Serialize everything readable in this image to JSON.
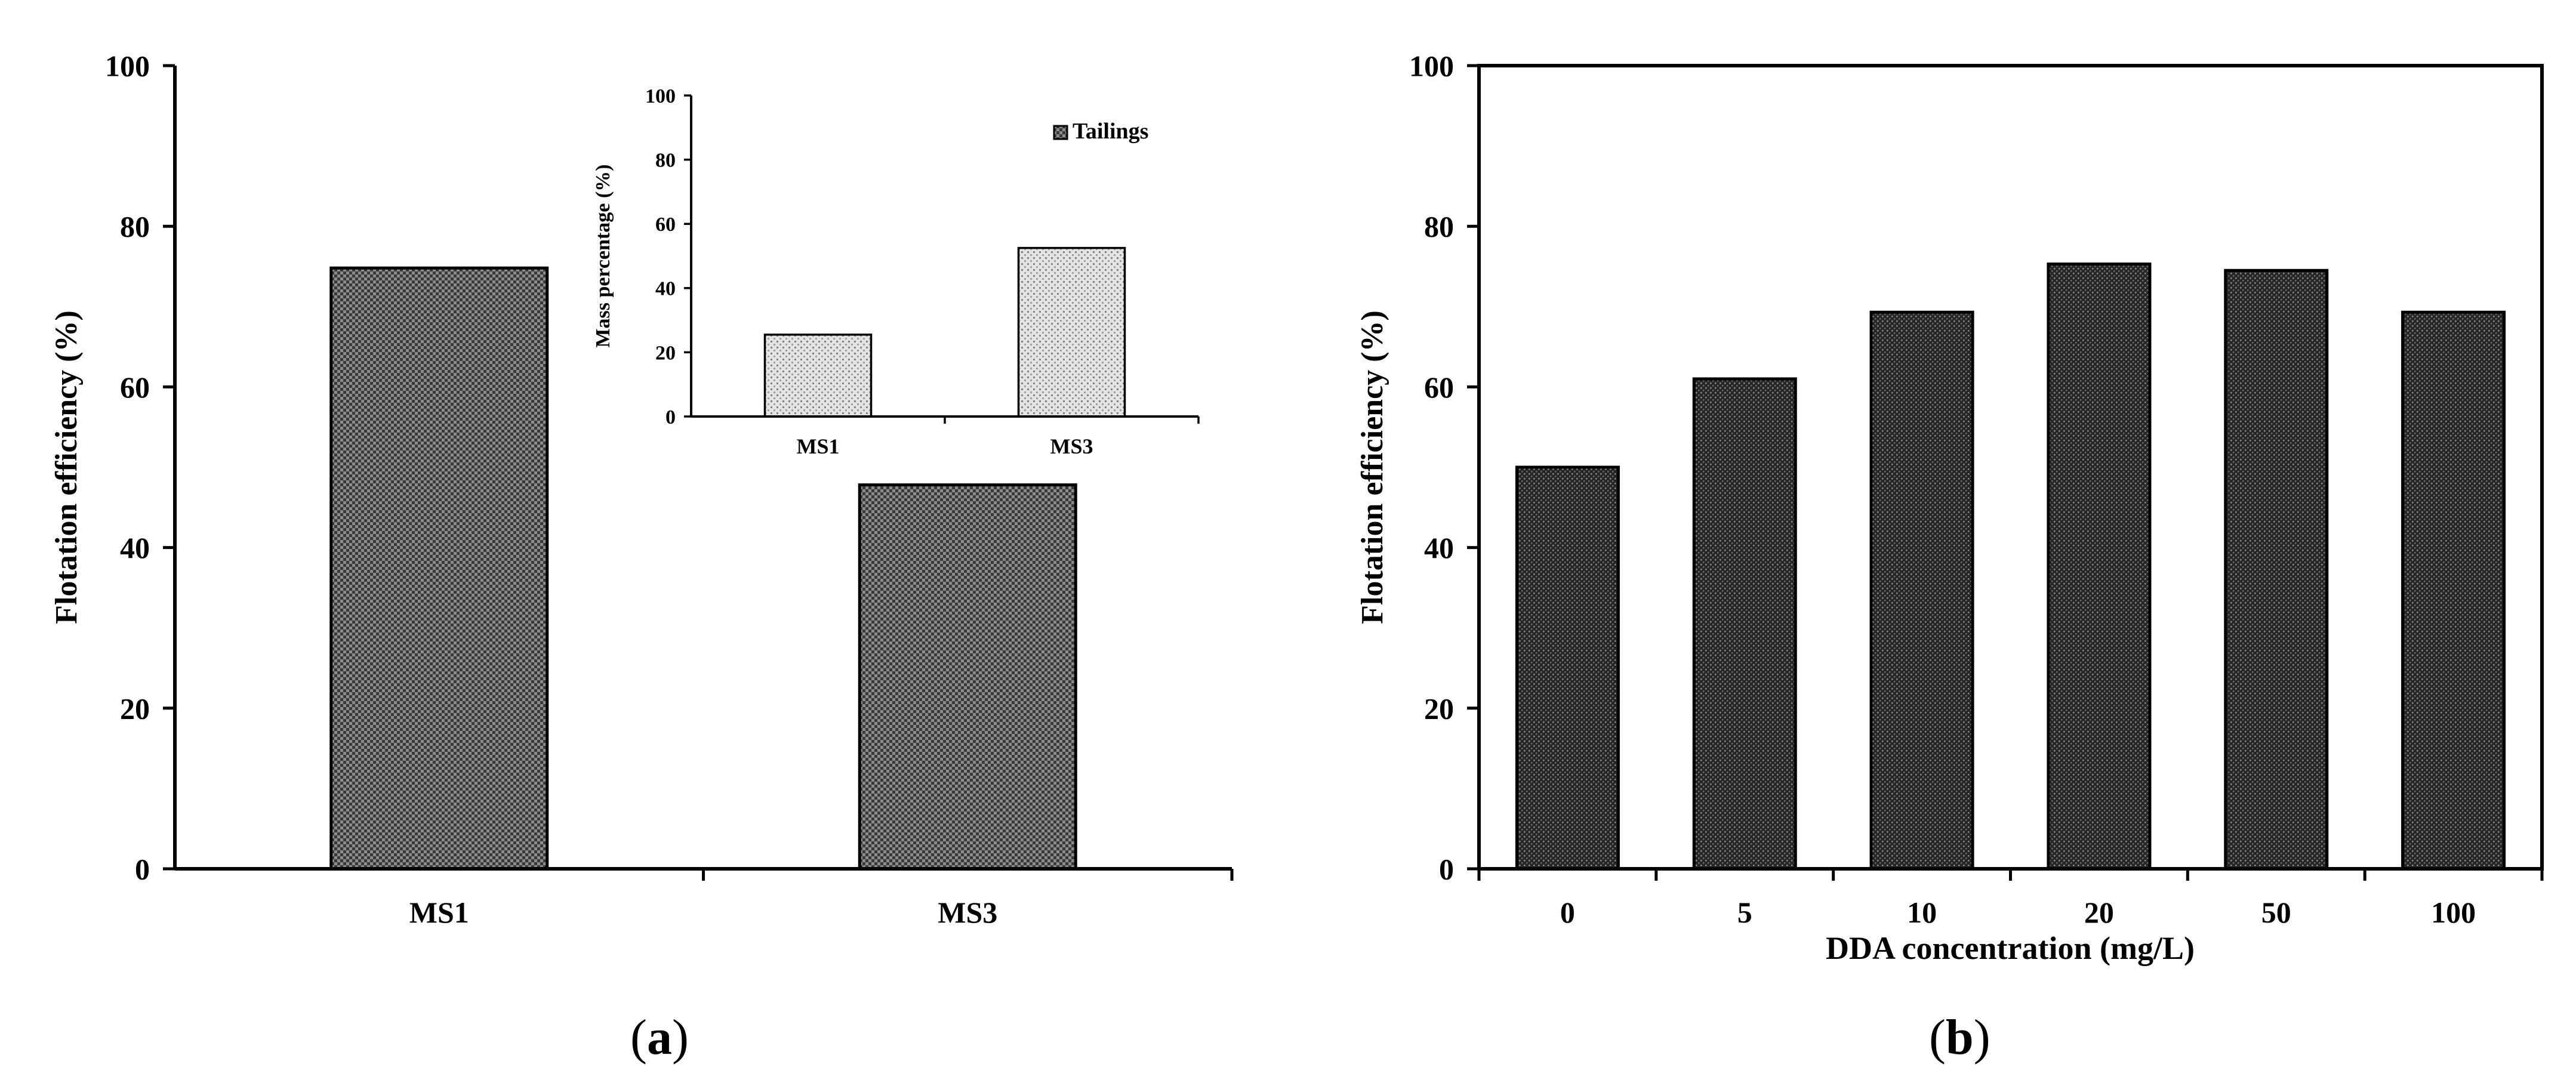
{
  "chart_data": [
    {
      "id": "a",
      "type": "bar",
      "categories": [
        "MS1",
        "MS3"
      ],
      "values": [
        74.8,
        47.8
      ],
      "ylabel": "Flotation efficiency (%)",
      "xlabel": "",
      "ylim": [
        0,
        100
      ],
      "yticks": [
        "0",
        "20",
        "40",
        "60",
        "80",
        "100"
      ],
      "grid": false,
      "caption": "(a)",
      "caption_letter": "a",
      "bar_fill": "checkered-gray",
      "inset": {
        "type": "bar",
        "categories": [
          "MS1",
          "MS3"
        ],
        "values": [
          25.5,
          52.5
        ],
        "ylabel": "Mass percentage (%)",
        "ylim": [
          0,
          100
        ],
        "yticks": [
          "0",
          "20",
          "40",
          "60",
          "80",
          "100"
        ],
        "legend": [
          "Tailings"
        ],
        "legend_position": "top-right",
        "bar_fill": "light-dotted-gray"
      }
    },
    {
      "id": "b",
      "type": "bar",
      "categories": [
        "0",
        "5",
        "10",
        "20",
        "50",
        "100"
      ],
      "values": [
        50.0,
        61.0,
        69.3,
        75.3,
        74.5,
        69.3
      ],
      "ylabel": "Flotation efficiency (%)",
      "xlabel": "DDA concentration (mg/L)",
      "ylim": [
        0,
        100
      ],
      "yticks": [
        "0",
        "20",
        "40",
        "60",
        "80",
        "100"
      ],
      "grid": false,
      "caption": "(b)",
      "caption_letter": "b",
      "bar_fill": "dark-dotted-gray"
    }
  ],
  "colors": {
    "axis": "#000000",
    "bar_a_base": "#8a8a8a",
    "bar_inset_base": "#d8d8d8",
    "bar_b_base": "#3c3c3c"
  }
}
